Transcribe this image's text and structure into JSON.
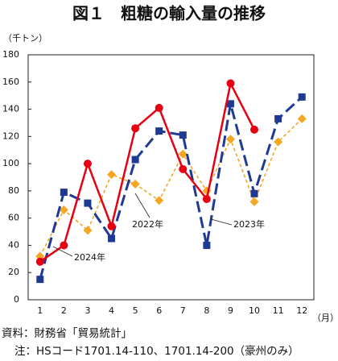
{
  "chart_data": {
    "type": "line",
    "title": "図１　粗糖の輸入量の推移",
    "y_unit": "（千トン）",
    "x_unit": "（月）",
    "categories": [
      "1",
      "2",
      "3",
      "4",
      "5",
      "6",
      "7",
      "8",
      "9",
      "10",
      "11",
      "12"
    ],
    "series": [
      {
        "name": "2022年",
        "color": "#f5a623",
        "values": [
          32,
          66,
          51,
          92,
          85,
          73,
          107,
          80,
          118,
          72,
          116,
          133
        ]
      },
      {
        "name": "2023年",
        "color": "#1f3a93",
        "values": [
          15,
          79,
          71,
          45,
          103,
          124,
          121,
          40,
          144,
          78,
          133,
          149
        ]
      },
      {
        "name": "2024年",
        "color": "#e60012",
        "values": [
          28,
          40,
          100,
          54,
          126,
          141,
          96,
          74,
          159,
          125,
          null,
          null
        ]
      }
    ],
    "ylim": [
      0,
      180
    ],
    "yticks": [
      0,
      20,
      40,
      60,
      80,
      100,
      120,
      140,
      160,
      180
    ],
    "grid": false,
    "notes": [
      "資料：財務省「貿易統計」",
      "注：HSコード1701.14-110、1701.14-200（豪州のみ）"
    ]
  }
}
